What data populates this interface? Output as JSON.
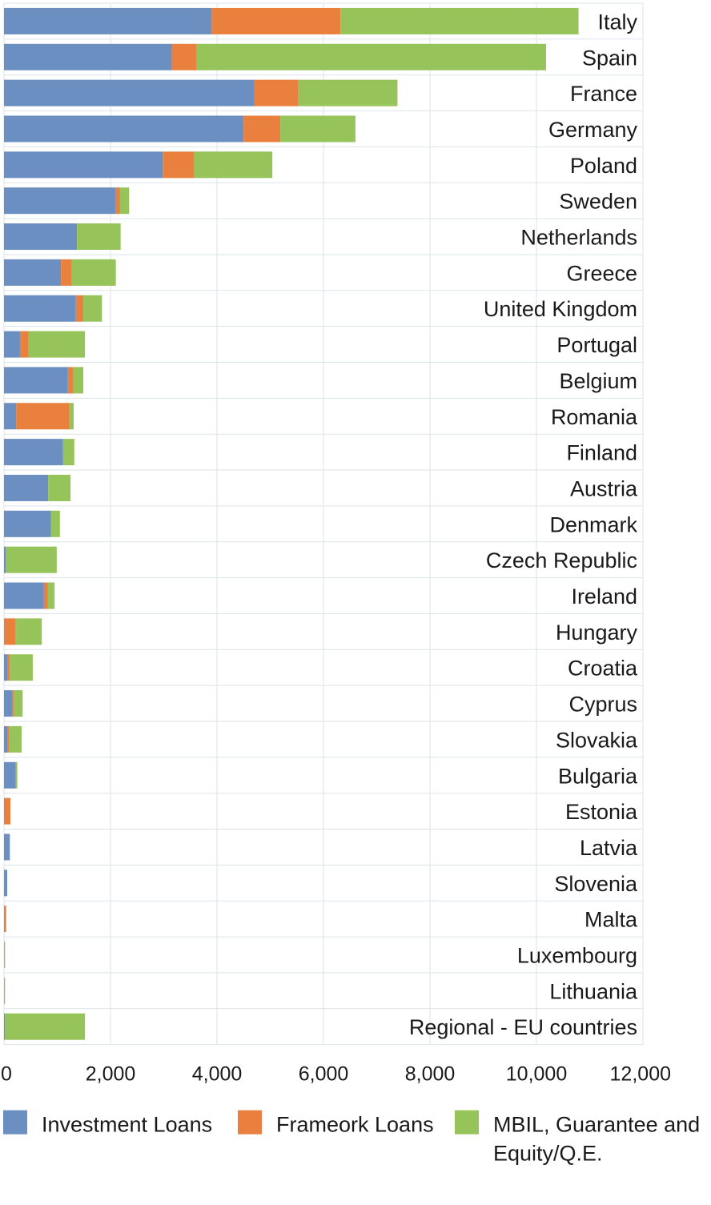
{
  "chart_data": {
    "type": "bar",
    "orientation": "horizontal",
    "stacked": true,
    "categories": [
      "Italy",
      "Spain",
      "France",
      "Germany",
      "Poland",
      "Sweden",
      "Netherlands",
      "Greece",
      "United Kingdom",
      "Portugal",
      "Belgium",
      "Romania",
      "Finland",
      "Austria",
      "Denmark",
      "Czech Republic",
      "Ireland",
      "Hungary",
      "Croatia",
      "Cyprus",
      "Slovakia",
      "Bulgaria",
      "Estonia",
      "Latvia",
      "Slovenia",
      "Malta",
      "Luxembourg",
      "Lithuania",
      "Regional - EU countries"
    ],
    "series": [
      {
        "name": "Investment Loans",
        "color": "#6a8fc0",
        "values": [
          3900,
          3150,
          4700,
          4500,
          2980,
          2100,
          1370,
          1070,
          1350,
          300,
          1200,
          230,
          1110,
          830,
          880,
          30,
          750,
          10,
          60,
          160,
          70,
          220,
          10,
          110,
          60,
          0,
          0,
          0,
          20
        ]
      },
      {
        "name": "Frameork Loans",
        "color": "#e9803d",
        "values": [
          2420,
          470,
          830,
          690,
          590,
          80,
          0,
          200,
          140,
          160,
          100,
          1000,
          0,
          0,
          0,
          0,
          70,
          200,
          50,
          20,
          20,
          0,
          110,
          0,
          0,
          40,
          0,
          0,
          0
        ]
      },
      {
        "name": "MBIL, Guarantee and Equity/Q.E.",
        "color": "#96c35a",
        "values": [
          4470,
          6560,
          1860,
          1410,
          1470,
          170,
          820,
          830,
          350,
          1060,
          190,
          80,
          210,
          420,
          170,
          960,
          130,
          500,
          430,
          170,
          240,
          30,
          0,
          0,
          0,
          0,
          20,
          20,
          1500
        ]
      }
    ],
    "x_ticks": [
      "0",
      "2,000",
      "4,000",
      "6,000",
      "8,000",
      "10,000",
      "12,000"
    ],
    "xlim": [
      0,
      12000
    ],
    "grid": true,
    "legend_position": "bottom"
  }
}
